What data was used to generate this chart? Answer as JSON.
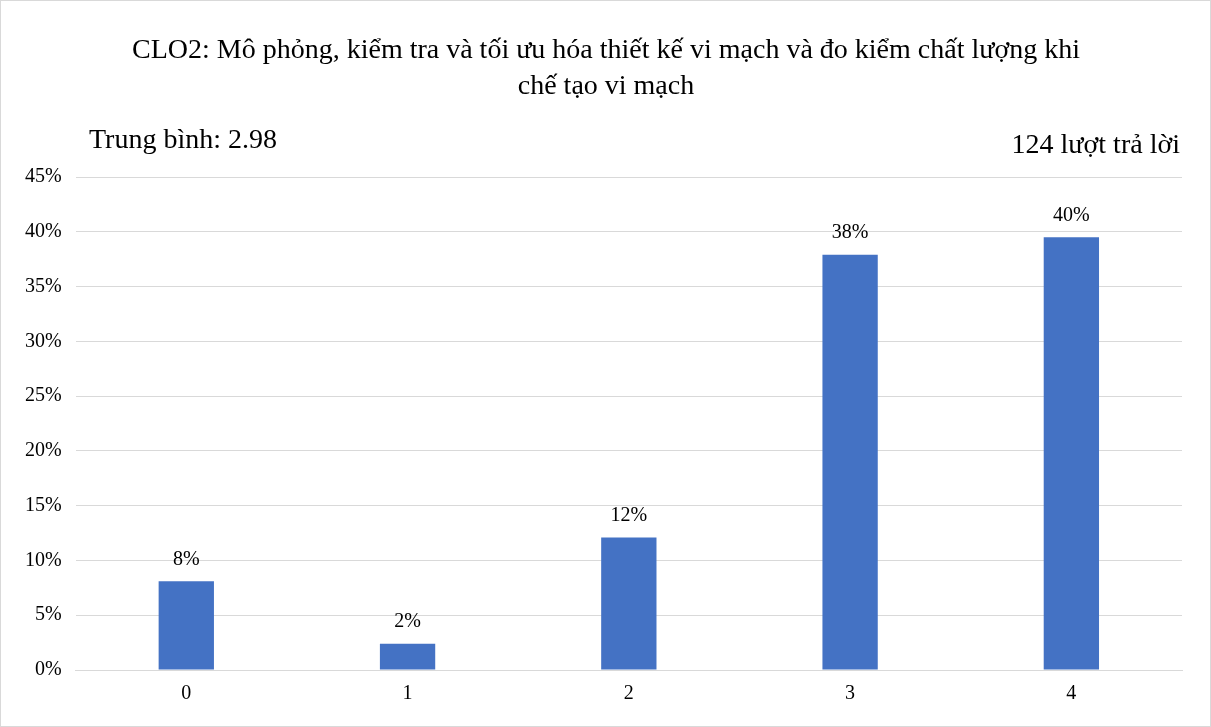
{
  "chart_data": {
    "type": "bar",
    "title": "CLO2: Mô phỏng, kiểm tra và tối ưu hóa thiết kế vi mạch và đo kiểm chất lượng khi chế tạo vi mạch",
    "annotations": [
      "Trung bình: 2.98",
      "124 lượt trả lời"
    ],
    "categories": [
      "0",
      "1",
      "2",
      "3",
      "4"
    ],
    "values": [
      8.1,
      2.4,
      12.1,
      37.9,
      39.5
    ],
    "value_labels": [
      "8%",
      "2%",
      "12%",
      "38%",
      "40%"
    ],
    "color": "#4472c4",
    "ylim": [
      0,
      45
    ],
    "yticks": [
      {
        "value": 0,
        "label": "0%"
      },
      {
        "value": 5,
        "label": "5%"
      },
      {
        "value": 10,
        "label": "10%"
      },
      {
        "value": 15,
        "label": "15%"
      },
      {
        "value": 20,
        "label": "20%"
      },
      {
        "value": 25,
        "label": "25%"
      },
      {
        "value": 30,
        "label": "30%"
      },
      {
        "value": 35,
        "label": "35%"
      },
      {
        "value": 40,
        "label": "40%"
      },
      {
        "value": 45,
        "label": "45%"
      }
    ],
    "grid": "y",
    "legend": false
  }
}
